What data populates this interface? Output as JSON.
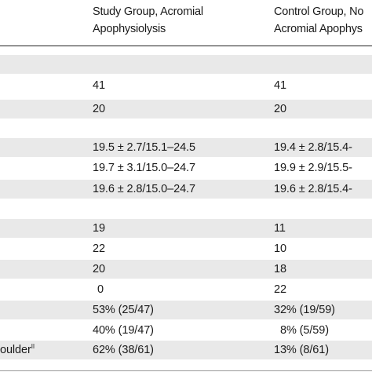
{
  "table": {
    "headers": {
      "study_line1": "Study Group, Acromial",
      "study_line2": "Apophysiolysis",
      "control_line1": "Control Group, No",
      "control_line2": "Acromial Apophys"
    },
    "rows": [
      {
        "label": "",
        "study": "",
        "control": ""
      },
      {
        "label": "",
        "study": "41",
        "control": "41"
      },
      {
        "label": "",
        "study": "20",
        "control": "20"
      },
      {
        "label": "",
        "study": "",
        "control": ""
      },
      {
        "label": "",
        "study": "19.5 ± 2.7/15.1–24.5",
        "control": "19.4 ± 2.8/15.4-"
      },
      {
        "label": "",
        "study": "19.7 ± 3.1/15.0–24.7",
        "control": "19.9 ± 2.9/15.5-"
      },
      {
        "label": "",
        "study": "19.6 ± 2.8/15.0–24.7",
        "control": "19.6 ± 2.8/15.4-"
      },
      {
        "label": "",
        "study": "",
        "control": ""
      },
      {
        "label": "",
        "study": "19",
        "control": "11"
      },
      {
        "label": "",
        "study": "22",
        "control": "10"
      },
      {
        "label": "",
        "study": "20",
        "control": "18"
      },
      {
        "label": "",
        "study": "0",
        "control": "22"
      },
      {
        "label": "",
        "study": "53% (25/47)",
        "control": "32% (19/59)"
      },
      {
        "label": "",
        "study": "40% (19/47)",
        "control": "8% (5/59)"
      },
      {
        "label": "oulder",
        "label_sup": "II",
        "study": "62% (38/61)",
        "control": "13% (8/61)"
      }
    ]
  }
}
